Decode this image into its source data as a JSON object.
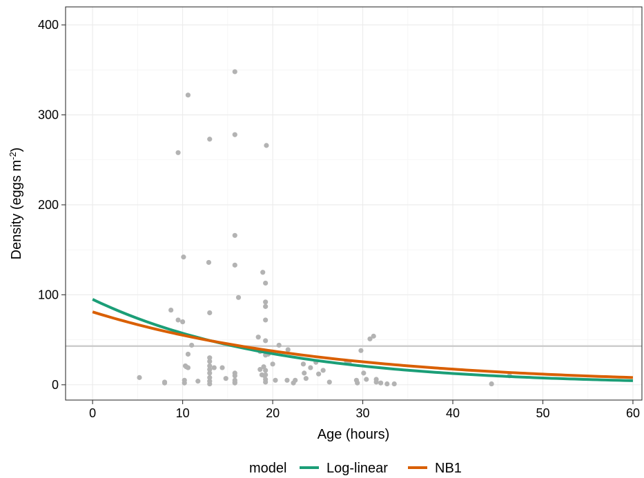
{
  "chart_data": {
    "type": "scatter",
    "xlabel": "Age (hours)",
    "ylabel_main": "Density (eggs m",
    "ylabel_sup": "-2",
    "ylabel_close": ")",
    "xlim": [
      -3,
      61
    ],
    "ylim": [
      -17,
      420
    ],
    "x_ticks": [
      0,
      10,
      20,
      30,
      40,
      50,
      60
    ],
    "y_ticks": [
      0,
      100,
      200,
      300,
      400
    ],
    "x_tick_labels": [
      "0",
      "10",
      "20",
      "30",
      "40",
      "50",
      "60"
    ],
    "y_tick_labels": [
      "0",
      "100",
      "200",
      "300",
      "400"
    ],
    "grid": true,
    "legend_position": "bottom",
    "legend_title": "model",
    "reference_line": {
      "y": 43,
      "color": "#cccccc"
    },
    "points_color": "#b3b3b3",
    "points": [
      [
        5.2,
        8
      ],
      [
        8.0,
        3
      ],
      [
        8.0,
        2
      ],
      [
        8.7,
        83
      ],
      [
        9.5,
        258
      ],
      [
        9.5,
        72
      ],
      [
        10.0,
        70
      ],
      [
        10.1,
        142
      ],
      [
        10.2,
        5
      ],
      [
        10.2,
        2
      ],
      [
        10.3,
        21
      ],
      [
        10.4,
        20
      ],
      [
        10.6,
        322
      ],
      [
        10.6,
        34
      ],
      [
        10.6,
        19
      ],
      [
        11.0,
        44
      ],
      [
        11.7,
        4
      ],
      [
        12.9,
        136
      ],
      [
        13.0,
        273
      ],
      [
        13.0,
        80
      ],
      [
        13.0,
        30
      ],
      [
        13.0,
        26
      ],
      [
        13.0,
        21
      ],
      [
        13.0,
        17
      ],
      [
        13.0,
        13
      ],
      [
        13.0,
        8
      ],
      [
        13.0,
        4
      ],
      [
        13.0,
        1
      ],
      [
        13.5,
        19
      ],
      [
        14.4,
        19
      ],
      [
        14.8,
        7
      ],
      [
        15.8,
        348
      ],
      [
        15.8,
        278
      ],
      [
        15.8,
        166
      ],
      [
        15.8,
        133
      ],
      [
        15.8,
        13
      ],
      [
        15.8,
        10
      ],
      [
        15.8,
        5
      ],
      [
        15.8,
        3
      ],
      [
        15.8,
        2
      ],
      [
        16.2,
        97
      ],
      [
        18.4,
        53
      ],
      [
        18.6,
        37
      ],
      [
        18.6,
        17
      ],
      [
        18.8,
        11
      ],
      [
        18.9,
        125
      ],
      [
        19.0,
        20
      ],
      [
        19.1,
        10
      ],
      [
        19.2,
        113
      ],
      [
        19.2,
        92
      ],
      [
        19.2,
        87
      ],
      [
        19.2,
        72
      ],
      [
        19.2,
        49
      ],
      [
        19.2,
        33
      ],
      [
        19.2,
        16
      ],
      [
        19.2,
        11
      ],
      [
        19.2,
        6
      ],
      [
        19.2,
        3
      ],
      [
        19.3,
        266
      ],
      [
        19.5,
        34
      ],
      [
        20.0,
        23
      ],
      [
        20.3,
        5
      ],
      [
        20.7,
        44
      ],
      [
        21.6,
        5
      ],
      [
        21.7,
        39
      ],
      [
        22.3,
        2
      ],
      [
        22.5,
        5
      ],
      [
        23.4,
        23
      ],
      [
        23.5,
        13
      ],
      [
        23.7,
        7
      ],
      [
        24.2,
        19
      ],
      [
        24.8,
        25
      ],
      [
        25.1,
        12
      ],
      [
        25.6,
        16
      ],
      [
        26.3,
        3
      ],
      [
        28.2,
        26
      ],
      [
        28.5,
        24
      ],
      [
        29.3,
        5
      ],
      [
        29.4,
        2
      ],
      [
        29.8,
        38
      ],
      [
        30.1,
        13
      ],
      [
        30.4,
        6
      ],
      [
        30.8,
        51
      ],
      [
        31.2,
        54
      ],
      [
        31.5,
        6
      ],
      [
        31.5,
        3
      ],
      [
        32.0,
        2
      ],
      [
        32.7,
        1
      ],
      [
        33.5,
        1
      ],
      [
        44.3,
        1
      ],
      [
        46.3,
        10
      ]
    ],
    "series": [
      {
        "name": "Log-linear",
        "color": "#1b9e77",
        "intercept": 95,
        "rate": 0.0506
      },
      {
        "name": "NB1",
        "color": "#d95f02",
        "intercept": 81,
        "rate": 0.0385
      }
    ]
  }
}
